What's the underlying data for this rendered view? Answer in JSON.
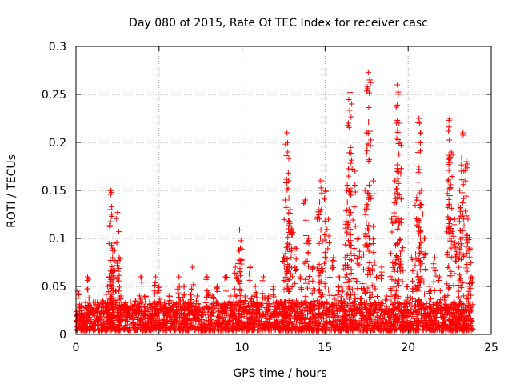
{
  "chart_data": {
    "type": "scatter",
    "title": "Day 080 of 2015, Rate Of TEC Index for receiver casc",
    "xlabel": "GPS time / hours",
    "ylabel": "ROTI / TECUs",
    "xlim": [
      0,
      25
    ],
    "ylim": [
      0,
      0.3
    ],
    "x_ticks": [
      0,
      5,
      10,
      15,
      20,
      25
    ],
    "x_tick_labels": [
      "0",
      "5",
      "10",
      "15",
      "20",
      "25"
    ],
    "y_ticks": [
      0,
      0.05,
      0.1,
      0.15,
      0.2,
      0.25,
      0.3
    ],
    "y_tick_labels": [
      "0",
      "0.05",
      "0.1",
      "0.15",
      "0.2",
      "0.25",
      "0.3"
    ],
    "grid": true,
    "marker": "+",
    "color": "#ff0000",
    "series": [
      {
        "name": "ROTI",
        "x": [
          0.1,
          0.3,
          0.5,
          0.7,
          1.0,
          1.3,
          1.6,
          1.9,
          2.0,
          2.05,
          2.1,
          2.15,
          2.2,
          2.3,
          2.5,
          2.6,
          2.7,
          3.0,
          3.3,
          3.6,
          3.9,
          4.2,
          4.5,
          4.8,
          5.0,
          5.3,
          5.6,
          5.9,
          6.2,
          6.5,
          6.8,
          7.0,
          7.3,
          7.6,
          7.9,
          8.2,
          8.5,
          8.8,
          9.0,
          9.3,
          9.6,
          9.8,
          9.85,
          9.9,
          10.2,
          10.5,
          10.8,
          11.0,
          11.3,
          11.6,
          11.9,
          12.2,
          12.5,
          12.6,
          12.7,
          12.75,
          12.8,
          12.9,
          13.0,
          13.2,
          13.5,
          13.8,
          14.0,
          14.3,
          14.6,
          14.7,
          14.8,
          15.0,
          15.2,
          15.5,
          15.8,
          16.0,
          16.2,
          16.3,
          16.4,
          16.5,
          16.6,
          16.8,
          17.0,
          17.2,
          17.4,
          17.5,
          17.6,
          17.7,
          17.9,
          18.1,
          18.4,
          18.7,
          19.0,
          19.2,
          19.3,
          19.35,
          19.4,
          19.5,
          19.6,
          19.9,
          20.2,
          20.5,
          20.6,
          20.65,
          20.7,
          20.8,
          21.0,
          21.3,
          21.6,
          21.9,
          22.2,
          22.4,
          22.45,
          22.5,
          22.6,
          22.8,
          23.0,
          23.1,
          23.2,
          23.3,
          23.5,
          23.6,
          23.7,
          23.8
        ],
        "y": [
          0.045,
          0.03,
          0.02,
          0.06,
          0.025,
          0.015,
          0.035,
          0.05,
          0.06,
          0.13,
          0.15,
          0.125,
          0.08,
          0.095,
          0.127,
          0.08,
          0.04,
          0.03,
          0.02,
          0.035,
          0.06,
          0.04,
          0.02,
          0.06,
          0.05,
          0.03,
          0.04,
          0.02,
          0.06,
          0.05,
          0.03,
          0.07,
          0.04,
          0.02,
          0.06,
          0.04,
          0.05,
          0.03,
          0.06,
          0.04,
          0.07,
          0.088,
          0.109,
          0.09,
          0.04,
          0.07,
          0.05,
          0.03,
          0.06,
          0.04,
          0.05,
          0.03,
          0.08,
          0.14,
          0.21,
          0.19,
          0.16,
          0.13,
          0.11,
          0.09,
          0.06,
          0.14,
          0.1,
          0.07,
          0.13,
          0.16,
          0.16,
          0.15,
          0.12,
          0.08,
          0.06,
          0.05,
          0.08,
          0.15,
          0.22,
          0.252,
          0.24,
          0.17,
          0.1,
          0.08,
          0.15,
          0.21,
          0.273,
          0.265,
          0.16,
          0.06,
          0.07,
          0.04,
          0.12,
          0.16,
          0.22,
          0.26,
          0.25,
          0.2,
          0.12,
          0.05,
          0.08,
          0.14,
          0.2,
          0.225,
          0.22,
          0.15,
          0.1,
          0.05,
          0.08,
          0.06,
          0.04,
          0.16,
          0.223,
          0.225,
          0.19,
          0.12,
          0.09,
          0.15,
          0.17,
          0.21,
          0.18,
          0.12,
          0.09,
          0.06
        ]
      }
    ],
    "noise_floor": [
      0,
      0.03
    ],
    "noise_x_range": [
      0,
      23.9
    ]
  }
}
